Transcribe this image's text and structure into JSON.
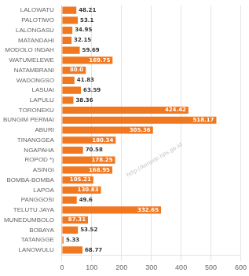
{
  "chart_data": {
    "type": "bar",
    "orientation": "horizontal",
    "categories": [
      "LALOWATU",
      "PALOTIWO",
      "LALONGASU",
      "MATANDAHI",
      "MODOLO INDAH",
      "WATUMELEWE",
      "NATAMBRANI",
      "WADONGSO",
      "LASUAI",
      "LAPULU",
      "TORONEKU",
      "BUNGIM PERMAI",
      "ABURI",
      "TINANGGEA",
      "NGAPAHA",
      "ROPOD *)",
      "ASINGI",
      "BOMBA-BOMBA",
      "LAPOA",
      "PANGGOSI",
      "TELUTU JAYA",
      "MUNEDUMBOLO",
      "BOBAYA",
      "TATANGGE",
      "LANOWULU"
    ],
    "values": [
      48.21,
      53.1,
      34.95,
      32.15,
      59.69,
      169.75,
      80.0,
      41.83,
      63.59,
      38.36,
      424.42,
      518.17,
      305.36,
      180.34,
      70.58,
      178.25,
      168.95,
      105.21,
      130.83,
      49.6,
      332.65,
      87.31,
      53.52,
      5.33,
      68.77
    ],
    "value_labels": [
      "48.21",
      "53.1",
      "34.95",
      "32.15",
      "59.69",
      "169.75",
      "80.0",
      "41.83",
      "63.59",
      "38.36",
      "424.42",
      "518.17",
      "305.36",
      "180.34",
      "70.58",
      "178.25",
      "168.95",
      "105.21",
      "130.83",
      "49.6",
      "332.65",
      "87.31",
      "53.52",
      "5.33",
      "68.77"
    ],
    "color": "#f07820",
    "xlim": [
      0,
      600
    ],
    "xticks": [
      0,
      100,
      200,
      300,
      400,
      500,
      600
    ],
    "grid": true,
    "data_labels": true,
    "annotations": [
      "http://konsep.bps.go.id"
    ]
  }
}
